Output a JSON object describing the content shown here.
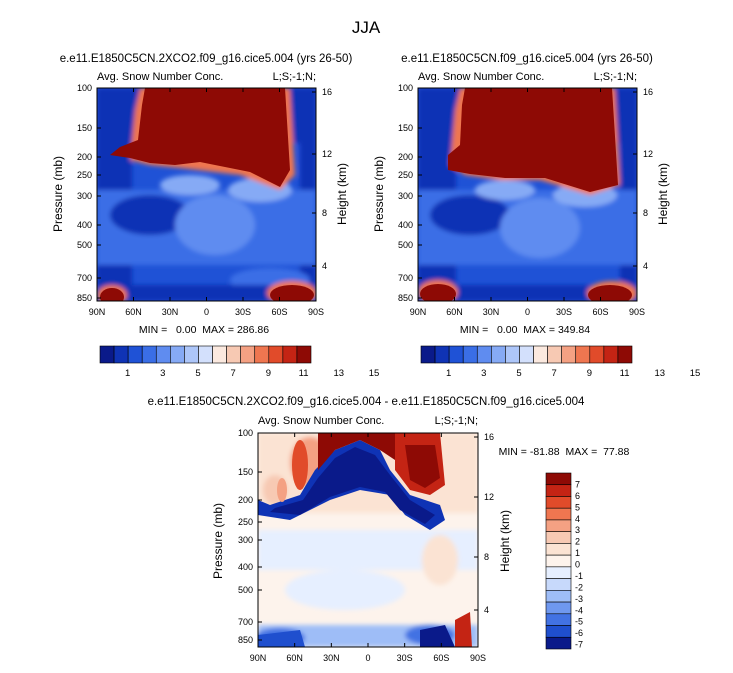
{
  "figure": {
    "season": "JJA"
  },
  "chart_data": [
    {
      "type": "heatmap",
      "id": "panel1",
      "title": "e.e11.E1850C5CN.2XCO2.f09_g16.cice5.004 (yrs 26-50)",
      "variable": "Avg. Snow Number Conc.",
      "corner": "L;S;-1;N;",
      "xlabel": "",
      "ylabel": "Pressure (mb)",
      "y2label": "Height (km)",
      "xticks": [
        "90N",
        "60N",
        "30N",
        "0",
        "30S",
        "60S",
        "90S"
      ],
      "yticks": [
        "100",
        "150",
        "200",
        "250",
        "300",
        "400",
        "500",
        "700",
        "850"
      ],
      "y2ticks": [
        "16",
        "12",
        "8",
        "4"
      ],
      "stats": "MIN =   0.00  MAX = 286.86",
      "colorbar_labels": [
        "1",
        "3",
        "5",
        "7",
        "9",
        "11",
        "13",
        "15"
      ]
    },
    {
      "type": "heatmap",
      "id": "panel2",
      "title": "e.e11.E1850C5CN.f09_g16.cice5.004 (yrs 26-50)",
      "variable": "Avg. Snow Number Conc.",
      "corner": "L;S;-1;N;",
      "xlabel": "",
      "ylabel": "Pressure (mb)",
      "y2label": "Height (km)",
      "xticks": [
        "90N",
        "60N",
        "30N",
        "0",
        "30S",
        "60S",
        "90S"
      ],
      "yticks": [
        "100",
        "150",
        "200",
        "250",
        "300",
        "400",
        "500",
        "700",
        "850"
      ],
      "y2ticks": [
        "16",
        "12",
        "8",
        "4"
      ],
      "stats": "MIN =   0.00  MAX = 349.84",
      "colorbar_labels": [
        "1",
        "3",
        "5",
        "7",
        "9",
        "11",
        "13",
        "15"
      ]
    },
    {
      "type": "heatmap",
      "id": "panel3",
      "title": "e.e11.E1850C5CN.2XCO2.f09_g16.cice5.004 - e.e11.E1850C5CN.f09_g16.cice5.004",
      "variable": "Avg. Snow Number Conc.",
      "corner": "L;S;-1;N;",
      "xlabel": "",
      "ylabel": "Pressure (mb)",
      "y2label": "Height (km)",
      "xticks": [
        "90N",
        "60N",
        "30N",
        "0",
        "30S",
        "60S",
        "90S"
      ],
      "yticks": [
        "100",
        "150",
        "200",
        "250",
        "300",
        "400",
        "500",
        "700",
        "850"
      ],
      "y2ticks": [
        "16",
        "12",
        "8",
        "4"
      ],
      "stats": "MIN = -81.88  MAX =  77.88",
      "colorbar_labels": [
        "7",
        "6",
        "5",
        "4",
        "3",
        "2",
        "1",
        "0",
        "-1",
        "-2",
        "-3",
        "-4",
        "-5",
        "-6",
        "-7"
      ]
    }
  ],
  "colors": {
    "abs_scale": [
      "#0a1a8a",
      "#0f33b5",
      "#1f52d6",
      "#3a6ee6",
      "#5f8cf0",
      "#86aaf5",
      "#adc6f9",
      "#d3e0fc",
      "#fbe9df",
      "#f7c9b3",
      "#f4a183",
      "#ef7650",
      "#e14b2a",
      "#c42414",
      "#8e0a05"
    ],
    "diff_scale": [
      "#8e0a05",
      "#c42414",
      "#e14b2a",
      "#ef7650",
      "#f4a183",
      "#f7c9b3",
      "#fbe3d3",
      "#fdf3ec",
      "#e6efff",
      "#c7d9fb",
      "#9ebdf7",
      "#6f98ef",
      "#4272e3",
      "#1f4fce",
      "#0a1a8a"
    ]
  }
}
